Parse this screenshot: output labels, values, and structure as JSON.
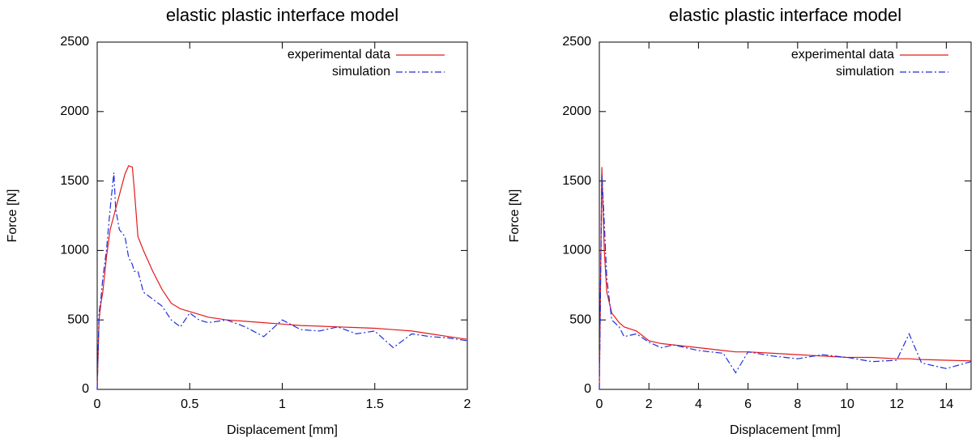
{
  "chart_data": [
    {
      "type": "line",
      "title": "elastic plastic interface model",
      "x_label": "Displacement [mm]",
      "y_label": "Force [N]",
      "x": [
        0,
        0.01,
        0.02,
        0.03,
        0.05,
        0.07,
        0.09,
        0.1,
        0.12,
        0.15,
        0.17,
        0.19,
        0.2,
        0.22,
        0.25,
        0.3,
        0.35,
        0.4,
        0.45,
        0.5,
        0.55,
        0.6,
        0.7,
        0.8,
        0.9,
        1.0,
        1.1,
        1.2,
        1.3,
        1.4,
        1.5,
        1.6,
        1.7,
        1.8,
        1.9,
        2.0
      ],
      "series": [
        {
          "name": "experimental data",
          "color": "#e41a1c",
          "linestyle": "solid",
          "values": [
            0,
            500,
            620,
            700,
            950,
            1150,
            1250,
            1300,
            1400,
            1550,
            1610,
            1600,
            1450,
            1100,
            1000,
            850,
            720,
            620,
            580,
            560,
            540,
            520,
            500,
            490,
            480,
            470,
            460,
            455,
            450,
            445,
            440,
            430,
            420,
            400,
            380,
            360
          ]
        },
        {
          "name": "simulation",
          "color": "#1f2fdf",
          "linestyle": "dashdot",
          "values": [
            0,
            550,
            650,
            800,
            1000,
            1300,
            1560,
            1300,
            1150,
            1100,
            950,
            900,
            850,
            850,
            700,
            650,
            600,
            500,
            450,
            550,
            500,
            480,
            500,
            450,
            380,
            500,
            430,
            420,
            450,
            400,
            420,
            300,
            400,
            380,
            370,
            350
          ]
        }
      ],
      "xlim": [
        0,
        2
      ],
      "xticks": [
        0,
        0.5,
        1,
        1.5,
        2
      ],
      "ylim": [
        0,
        2500
      ],
      "yticks": [
        0,
        500,
        1000,
        1500,
        2000,
        2500
      ]
    },
    {
      "type": "line",
      "title": "elastic plastic interface model",
      "x_label": "Displacement [mm]",
      "y_label": "Force [N]",
      "x": [
        0,
        0.1,
        0.2,
        0.3,
        0.5,
        0.8,
        1,
        1.5,
        2,
        2.5,
        3,
        4,
        5,
        5.5,
        6,
        7,
        8,
        9,
        10,
        11,
        12,
        12.5,
        13,
        14,
        15
      ],
      "series": [
        {
          "name": "experimental data",
          "color": "#e41a1c",
          "linestyle": "solid",
          "values": [
            0,
            1600,
            1000,
            700,
            550,
            480,
            450,
            420,
            350,
            330,
            320,
            300,
            280,
            270,
            270,
            260,
            250,
            240,
            230,
            230,
            220,
            220,
            215,
            210,
            205
          ]
        },
        {
          "name": "simulation",
          "color": "#1f2fdf",
          "linestyle": "dashdot",
          "values": [
            0,
            1550,
            1200,
            800,
            500,
            450,
            380,
            400,
            340,
            300,
            320,
            280,
            260,
            120,
            270,
            240,
            220,
            250,
            230,
            200,
            210,
            400,
            190,
            150,
            200
          ]
        }
      ],
      "xlim": [
        0,
        15
      ],
      "xticks": [
        0,
        2,
        4,
        6,
        8,
        10,
        12,
        14
      ],
      "ylim": [
        0,
        2500
      ],
      "yticks": [
        0,
        500,
        1000,
        1500,
        2000,
        2500
      ]
    }
  ]
}
